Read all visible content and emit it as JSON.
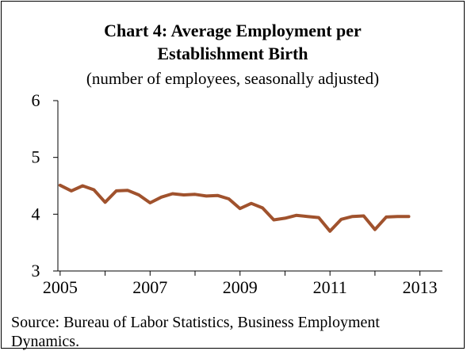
{
  "chart_data": {
    "type": "line",
    "title_line1": "Chart 4: Average Employment per",
    "title_line2": "Establishment Birth",
    "subtitle": "(number of employees, seasonally adjusted)",
    "source_line1": "Source: Bureau of Labor Statistics, Business Employment",
    "source_line2": "Dynamics.",
    "xlabel": "",
    "ylabel": "",
    "ylim": [
      3,
      6
    ],
    "xlim": [
      2005,
      2013.5
    ],
    "y_ticks": [
      3,
      4,
      5,
      6
    ],
    "x_ticks": [
      2005,
      2007,
      2009,
      2011,
      2013
    ],
    "grid": false,
    "line_color": "#A0522D",
    "series": [
      {
        "x": [
          2005.0,
          2005.25,
          2005.5,
          2005.75,
          2006.0,
          2006.25,
          2006.5,
          2006.75,
          2007.0,
          2007.25,
          2007.5,
          2007.75,
          2008.0,
          2008.25,
          2008.5,
          2008.75,
          2009.0,
          2009.25,
          2009.5,
          2009.75,
          2010.0,
          2010.25,
          2010.5,
          2010.75,
          2011.0,
          2011.25,
          2011.5,
          2011.75,
          2012.0,
          2012.25,
          2012.5,
          2012.75
        ],
        "values": [
          4.51,
          4.41,
          4.5,
          4.43,
          4.21,
          4.41,
          4.42,
          4.34,
          4.2,
          4.3,
          4.36,
          4.34,
          4.35,
          4.32,
          4.33,
          4.27,
          4.1,
          4.19,
          4.11,
          3.9,
          3.93,
          3.98,
          3.96,
          3.94,
          3.7,
          3.91,
          3.96,
          3.97,
          3.73,
          3.95,
          3.96,
          3.96
        ]
      }
    ]
  }
}
